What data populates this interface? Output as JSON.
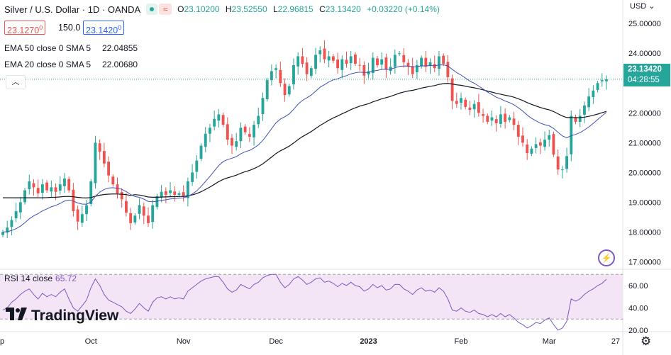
{
  "header": {
    "title": "Silver / U.S. Dollar · 1D · OANDA",
    "open_label": "O",
    "open": "23.10200",
    "high_label": "H",
    "high": "23.52550",
    "low_label": "L",
    "low": "22.96815",
    "close_label": "C",
    "close": "23.13420",
    "change": "+0.03220 (+0.14%)"
  },
  "quote": {
    "bid": "23.1270",
    "bid_sup": "0",
    "spread": "150.0",
    "ask": "23.1420",
    "ask_sup": "0"
  },
  "indicators": {
    "ema50_label": "EMA 50 close 0 SMA 5",
    "ema50_value": "22.04855",
    "ema20_label": "EMA 20 close 0 SMA 5",
    "ema20_value": "22.00680",
    "rsi_label": "RSI 14 close",
    "rsi_value": "65.72"
  },
  "axis": {
    "currency": "USD"
  },
  "price_tag": {
    "price": "23.13420",
    "countdown": "04:28:55"
  },
  "branding": {
    "logo_text": "TradingView"
  },
  "colors": {
    "up": "#26a69a",
    "down": "#ef5350",
    "ema20": "#3f51b5",
    "ema50": "#131722",
    "rsi": "#7e57c2",
    "rsi_band": "#f3e5f5"
  },
  "chart_data": [
    {
      "type": "candlestick",
      "title": "Silver / U.S. Dollar · 1D · OANDA",
      "ylim": [
        16.8,
        25.1
      ],
      "y_ticks": [
        "25.00000",
        "24.00000",
        "22.00000",
        "21.00000",
        "20.00000",
        "19.00000",
        "18.00000",
        "17.00000"
      ],
      "x_ticks": [
        {
          "label": "p",
          "index": 0
        },
        {
          "label": "Oct",
          "index": 20
        },
        {
          "label": "Nov",
          "index": 41
        },
        {
          "label": "Dec",
          "index": 62
        },
        {
          "label": "2023",
          "index": 83
        },
        {
          "label": "Feb",
          "index": 104
        },
        {
          "label": "Mar",
          "index": 124
        },
        {
          "label": "27",
          "index": 140
        }
      ],
      "close": [
        18.0,
        18.15,
        18.4,
        18.7,
        19.0,
        19.4,
        19.7,
        19.5,
        19.3,
        19.6,
        19.4,
        19.5,
        19.35,
        19.6,
        19.8,
        19.4,
        18.7,
        18.35,
        18.6,
        18.9,
        19.7,
        21.0,
        20.7,
        20.3,
        19.9,
        19.6,
        19.3,
        19.1,
        18.65,
        18.3,
        18.55,
        18.9,
        18.55,
        18.3,
        18.9,
        19.2,
        19.35,
        19.25,
        19.4,
        19.25,
        19.3,
        19.2,
        19.7,
        20.0,
        20.4,
        20.9,
        21.3,
        21.5,
        21.8,
        21.95,
        21.6,
        21.1,
        20.9,
        21.05,
        21.5,
        21.35,
        21.2,
        21.6,
        21.9,
        22.5,
        23.1,
        23.4,
        23.5,
        23.0,
        22.6,
        22.9,
        23.6,
        23.9,
        23.65,
        23.3,
        23.5,
        23.95,
        24.1,
        23.8,
        23.9,
        23.75,
        23.5,
        23.8,
        23.65,
        23.9,
        23.65,
        23.6,
        23.25,
        23.4,
        23.85,
        23.6,
        23.8,
        23.45,
        23.55,
        23.95,
        24.0,
        23.7,
        23.55,
        23.3,
        23.6,
        23.85,
        23.55,
        23.7,
        23.5,
        23.9,
        23.65,
        23.2,
        22.4,
        22.3,
        22.5,
        22.2,
        22.1,
        22.3,
        22.0,
        21.9,
        21.7,
        21.85,
        21.65,
        21.95,
        21.7,
        21.85,
        21.6,
        21.2,
        21.0,
        20.65,
        20.8,
        20.95,
        20.9,
        21.1,
        21.25,
        20.6,
        20.1,
        20.1,
        20.55,
        21.9,
        21.7,
        21.9,
        22.25,
        22.55,
        22.75,
        23.0,
        23.1,
        23.13
      ]
    },
    {
      "type": "line",
      "title": "RSI 14 close",
      "ylim": [
        20,
        75
      ],
      "y_ticks": [
        "60.00",
        "40.00",
        "20.00"
      ],
      "band": [
        30,
        70
      ],
      "values": [
        38,
        40,
        45,
        48,
        52,
        55,
        57,
        52,
        48,
        53,
        50,
        52,
        50,
        54,
        57,
        48,
        40,
        37,
        42,
        47,
        58,
        66,
        60,
        52,
        47,
        45,
        43,
        41,
        37,
        35,
        39,
        44,
        40,
        37,
        45,
        49,
        50,
        48,
        50,
        48,
        49,
        48,
        55,
        58,
        61,
        64,
        66,
        67,
        68,
        68,
        63,
        57,
        54,
        56,
        61,
        59,
        57,
        61,
        63,
        67,
        69,
        70,
        70,
        63,
        58,
        61,
        66,
        68,
        65,
        61,
        63,
        66,
        67,
        63,
        64,
        62,
        59,
        62,
        60,
        63,
        60,
        59,
        55,
        57,
        61,
        58,
        60,
        56,
        57,
        61,
        61,
        57,
        55,
        52,
        56,
        58,
        55,
        56,
        54,
        58,
        55,
        48,
        38,
        37,
        40,
        37,
        36,
        38,
        35,
        34,
        32,
        34,
        32,
        35,
        32,
        34,
        31,
        27,
        25,
        22,
        24,
        27,
        26,
        29,
        31,
        25,
        20,
        22,
        28,
        48,
        46,
        48,
        52,
        55,
        57,
        60,
        62,
        65.72
      ]
    }
  ]
}
